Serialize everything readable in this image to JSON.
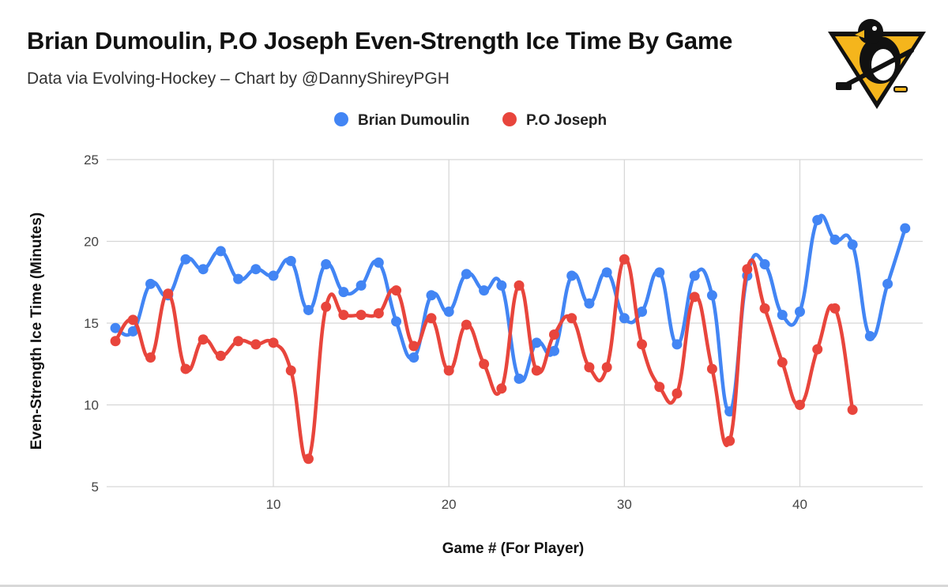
{
  "header": {
    "title": "Brian Dumoulin, P.O Joseph Even-Strength Ice Time By Game",
    "subtitle": "Data via Evolving-Hockey – Chart by @DannyShireyPGH"
  },
  "chart_data": {
    "type": "line",
    "title": "Brian Dumoulin, P.O Joseph Even-Strength Ice Time By Game",
    "subtitle": "Data via Evolving-Hockey – Chart by @DannyShireyPGH",
    "xlabel": "Game # (For Player)",
    "ylabel": "Even-Strength Ice Time (Minutes)",
    "xlim": [
      0.5,
      47
    ],
    "ylim": [
      5,
      25
    ],
    "x_ticks": [
      10,
      20,
      30,
      40
    ],
    "y_ticks": [
      5,
      10,
      15,
      20,
      25
    ],
    "grid": true,
    "legend_position": "top-center",
    "series": [
      {
        "name": "Brian Dumoulin",
        "color": "#4285F4",
        "x": [
          1,
          2,
          3,
          4,
          5,
          6,
          7,
          8,
          9,
          10,
          11,
          12,
          13,
          14,
          15,
          16,
          17,
          18,
          19,
          20,
          21,
          22,
          23,
          24,
          25,
          26,
          27,
          28,
          29,
          30,
          31,
          32,
          33,
          34,
          35,
          36,
          37,
          38,
          39,
          40,
          41,
          42,
          43,
          44,
          45,
          46
        ],
        "values": [
          14.7,
          14.5,
          17.4,
          16.7,
          18.9,
          18.3,
          19.4,
          17.7,
          18.3,
          17.9,
          18.8,
          15.8,
          18.6,
          16.9,
          17.3,
          18.7,
          15.1,
          12.9,
          16.7,
          15.7,
          18.0,
          17.0,
          17.3,
          11.6,
          13.8,
          13.3,
          17.9,
          16.2,
          18.1,
          15.3,
          15.7,
          18.1,
          13.7,
          17.9,
          16.7,
          9.6,
          17.9,
          18.6,
          15.5,
          15.7,
          21.3,
          20.1,
          19.8,
          14.2,
          17.4,
          20.8
        ]
      },
      {
        "name": "P.O Joseph",
        "color": "#E8453C",
        "x": [
          1,
          2,
          3,
          4,
          5,
          6,
          7,
          8,
          9,
          10,
          11,
          12,
          13,
          14,
          15,
          16,
          17,
          18,
          19,
          20,
          21,
          22,
          23,
          24,
          25,
          26,
          27,
          28,
          29,
          30,
          31,
          32,
          33,
          34,
          35,
          36,
          37,
          38,
          39,
          40,
          41,
          42,
          43
        ],
        "values": [
          13.9,
          15.2,
          12.9,
          16.8,
          12.2,
          14.0,
          13.0,
          13.9,
          13.7,
          13.8,
          12.1,
          6.7,
          16.0,
          15.5,
          15.5,
          15.6,
          17.0,
          13.6,
          15.3,
          12.1,
          14.9,
          12.5,
          11.0,
          17.3,
          12.1,
          14.3,
          15.3,
          12.3,
          12.3,
          18.9,
          13.7,
          11.1,
          10.7,
          16.6,
          12.2,
          7.8,
          18.3,
          15.9,
          12.6,
          10.0,
          13.4,
          15.9,
          9.7
        ]
      }
    ]
  }
}
